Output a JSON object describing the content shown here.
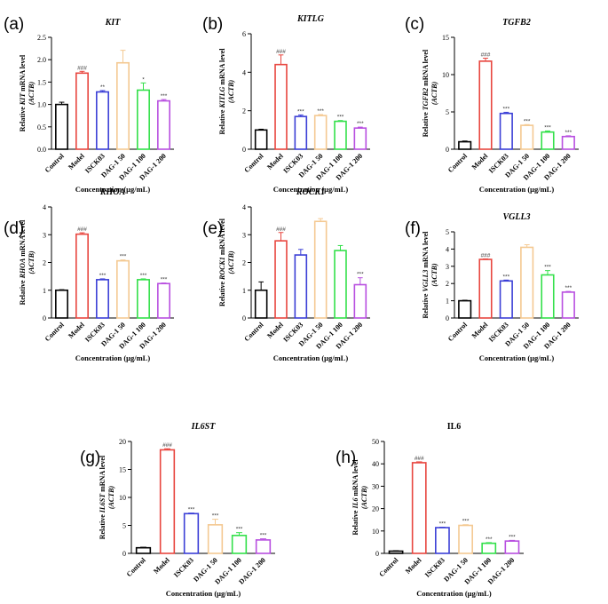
{
  "figure": {
    "categories": [
      "Control",
      "Model",
      "ISCK03",
      "DAG-1 50",
      "DAG-1 100",
      "DAG-1 200"
    ],
    "xlabel": "Concentration (μg/mL)",
    "colors": [
      "#000000",
      "#e8463f",
      "#3b3fd6",
      "#f4c992",
      "#33e04a",
      "#b84fe0"
    ]
  },
  "chart_data": [
    {
      "type": "bar",
      "panel": "(a)",
      "title": "KIT",
      "title_italic": true,
      "ylabel_parts": [
        "Relative ",
        "KIT",
        " mRNA level"
      ],
      "ylabel2": "(ACTB)",
      "ylim": [
        0,
        2.5
      ],
      "yticks": [
        "0.0",
        "0.5",
        "1.0",
        "1.5",
        "2.0",
        "2.5"
      ],
      "values": [
        1.0,
        1.7,
        1.28,
        1.93,
        1.32,
        1.08
      ],
      "errors": [
        0.05,
        0.04,
        0.03,
        0.28,
        0.16,
        0.03
      ],
      "sig": [
        "",
        "###",
        "**",
        "",
        "*",
        "***"
      ]
    },
    {
      "type": "bar",
      "panel": "(b)",
      "title": "KITLG",
      "title_italic": true,
      "ylabel_parts": [
        "Relative ",
        "KITLG",
        " mRNA level"
      ],
      "ylabel2": "(ACTB)",
      "ylim": [
        0,
        6
      ],
      "yticks": [
        "0",
        "2",
        "4",
        "6"
      ],
      "values": [
        1.0,
        4.4,
        1.7,
        1.75,
        1.45,
        1.1
      ],
      "errors": [
        0.04,
        0.5,
        0.08,
        0.05,
        0.04,
        0.05
      ],
      "sig": [
        "",
        "###",
        "***",
        "***",
        "***",
        "***"
      ]
    },
    {
      "type": "bar",
      "panel": "(c)",
      "title": "TGFB2",
      "title_italic": true,
      "ylabel_parts": [
        "Relative ",
        "TGFB2",
        " mRNA level"
      ],
      "ylabel2": "(ACTB)",
      "ylim": [
        0,
        15
      ],
      "yticks": [
        "0",
        "5",
        "10",
        "15"
      ],
      "values": [
        1.0,
        11.8,
        4.8,
        3.2,
        2.3,
        1.7
      ],
      "errors": [
        0.1,
        0.4,
        0.15,
        0.1,
        0.15,
        0.1
      ],
      "sig": [
        "",
        "###",
        "***",
        "***",
        "***",
        "***"
      ]
    },
    {
      "type": "bar",
      "panel": "(d)",
      "title": "RHOA",
      "title_italic": true,
      "ylabel_parts": [
        "Relative ",
        "RHOA",
        " mRNA level"
      ],
      "ylabel2": "(ACTB)",
      "ylim": [
        0,
        4
      ],
      "yticks": [
        "0",
        "1",
        "2",
        "3",
        "4"
      ],
      "values": [
        1.0,
        3.02,
        1.38,
        2.06,
        1.38,
        1.24
      ],
      "errors": [
        0.02,
        0.05,
        0.03,
        0.03,
        0.03,
        0.02
      ],
      "sig": [
        "",
        "###",
        "***",
        "***",
        "***",
        "***"
      ]
    },
    {
      "type": "bar",
      "panel": "(e)",
      "title": "ROCK1",
      "title_italic": true,
      "ylabel_parts": [
        "Relative ",
        "ROCK1",
        " mRNA level"
      ],
      "ylabel2": "(ACTB)",
      "ylim": [
        0,
        4
      ],
      "yticks": [
        "0",
        "1",
        "2",
        "3",
        "4"
      ],
      "values": [
        1.0,
        2.78,
        2.27,
        3.48,
        2.43,
        1.2
      ],
      "errors": [
        0.3,
        0.3,
        0.2,
        0.1,
        0.18,
        0.25
      ],
      "sig": [
        "",
        "###",
        "",
        "",
        "",
        "***"
      ]
    },
    {
      "type": "bar",
      "panel": "(f)",
      "title": "VGLL3",
      "title_italic": true,
      "ylabel_parts": [
        "Relative ",
        "VGLL3",
        " mRNA level"
      ],
      "ylabel2": "(ACTB)",
      "ylim": [
        0,
        5
      ],
      "yticks": [
        "0",
        "1",
        "2",
        "3",
        "4",
        "5"
      ],
      "values": [
        1.0,
        3.4,
        2.15,
        4.1,
        2.5,
        1.5
      ],
      "errors": [
        0.03,
        0.03,
        0.05,
        0.15,
        0.25,
        0.04
      ],
      "sig": [
        "",
        "###",
        "***",
        "",
        "***",
        "***"
      ]
    },
    {
      "type": "bar",
      "panel": "(g)",
      "title": "IL6ST",
      "title_italic": true,
      "ylabel_parts": [
        "Relative ",
        "IL6ST",
        " mRNA level"
      ],
      "ylabel2": "(ACTB)",
      "ylim": [
        0,
        20
      ],
      "yticks": [
        "0",
        "5",
        "10",
        "15",
        "20"
      ],
      "values": [
        1.0,
        18.5,
        7.1,
        5.1,
        3.2,
        2.4
      ],
      "errors": [
        0.1,
        0.2,
        0.1,
        1.0,
        0.5,
        0.2
      ],
      "sig": [
        "",
        "###",
        "***",
        "***",
        "***",
        "***"
      ]
    },
    {
      "type": "bar",
      "panel": "(h)",
      "title": "IL6",
      "title_italic": false,
      "ylabel_parts": [
        "Relative ",
        "IL6",
        " mRNA level"
      ],
      "ylabel2": "(ACTB)",
      "ylim": [
        0,
        50
      ],
      "yticks": [
        "0",
        "10",
        "20",
        "30",
        "40",
        "50"
      ],
      "values": [
        1.0,
        40.5,
        11.5,
        12.5,
        4.5,
        5.5
      ],
      "errors": [
        0.2,
        0.4,
        0.2,
        0.3,
        0.3,
        0.3
      ],
      "sig": [
        "",
        "###",
        "***",
        "***",
        "***",
        "***"
      ]
    }
  ]
}
